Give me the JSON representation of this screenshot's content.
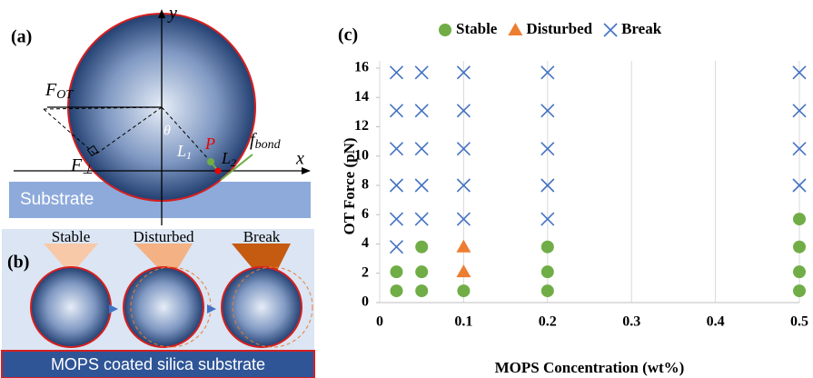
{
  "chart_data": {
    "type": "scatter",
    "panel_label": "(c)",
    "x_label": "MOPS Concentration (wt%)",
    "y_label": "OT Force (pN)",
    "xlim": [
      0,
      0.5
    ],
    "xticks": [
      0,
      0.1,
      0.2,
      0.3,
      0.4,
      0.5
    ],
    "ylim": [
      0,
      16
    ],
    "yticks": [
      0,
      2,
      4,
      6,
      8,
      10,
      12,
      14,
      16
    ],
    "grid": "x",
    "series": [
      {
        "name": "Stable",
        "color": "#70ad47",
        "marker": "circle",
        "x": [
          0.02,
          0.02,
          0.05,
          0.05,
          0.05,
          0.1,
          0.2,
          0.2,
          0.2,
          0.5,
          0.5,
          0.5,
          0.5
        ],
        "values": [
          0.8,
          2.1,
          0.8,
          2.1,
          3.8,
          0.8,
          0.8,
          2.1,
          3.8,
          0.8,
          2.1,
          3.8,
          5.7
        ]
      },
      {
        "name": "Disturbed",
        "color": "#ed7d31",
        "marker": "triangle",
        "x": [
          0.1,
          0.1
        ],
        "values": [
          2.1,
          3.8
        ]
      },
      {
        "name": "Break",
        "color": "#4472c4",
        "marker": "cross",
        "x": [
          0.02,
          0.02,
          0.02,
          0.02,
          0.02,
          0.02,
          0.05,
          0.05,
          0.05,
          0.05,
          0.05,
          0.1,
          0.1,
          0.1,
          0.1,
          0.1,
          0.2,
          0.2,
          0.2,
          0.2,
          0.2,
          0.5,
          0.5,
          0.5,
          0.5
        ],
        "values": [
          3.8,
          5.7,
          8,
          10.5,
          13.1,
          15.7,
          5.7,
          8,
          10.5,
          13.1,
          15.7,
          5.7,
          8,
          10.5,
          13.1,
          15.7,
          5.7,
          8,
          10.5,
          13.1,
          15.7,
          8,
          10.5,
          13.1,
          15.7
        ]
      }
    ]
  },
  "panel_a": {
    "label": "(a)",
    "y_axis": "y",
    "x_axis": "x",
    "f_ot": {
      "main": "F",
      "sub": "OT"
    },
    "f_perp": {
      "main": "F",
      "sub": "⊥"
    },
    "theta": "θ",
    "l1": {
      "main": "L",
      "sub": "1"
    },
    "point": "P",
    "l2": {
      "main": "L",
      "sub": "2"
    },
    "f_bond": {
      "main": "f",
      "sub": "bond"
    },
    "substrate": "Substrate"
  },
  "panel_b": {
    "label": "(b)",
    "states": [
      "Stable",
      "Disturbed",
      "Break"
    ],
    "substrate": "MOPS coated silica substrate"
  }
}
